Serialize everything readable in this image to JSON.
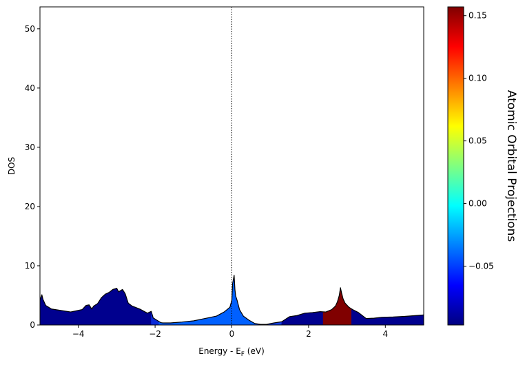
{
  "chart_data": {
    "type": "area",
    "xlabel_main": "Energy - E",
    "xlabel_sub": "F",
    "xlabel_tail": " (eV)",
    "ylabel": "DOS",
    "xlim": [
      -5,
      5
    ],
    "ylim": [
      0,
      53.7
    ],
    "x_ticks": [
      -4,
      -2,
      0,
      2,
      4
    ],
    "x_tick_labels": [
      "−4",
      "−2",
      "0",
      "2",
      "4"
    ],
    "y_ticks": [
      0,
      10,
      20,
      30,
      40,
      50
    ],
    "y_tick_labels": [
      "0",
      "10",
      "20",
      "30",
      "40",
      "50"
    ],
    "fermi_level": 0,
    "dos": {
      "x": [
        -5,
        -4.95,
        -4.92,
        -4.85,
        -4.7,
        -4.5,
        -4.2,
        -3.9,
        -3.8,
        -3.72,
        -3.65,
        -3.6,
        -3.5,
        -3.4,
        -3.3,
        -3.2,
        -3.1,
        -3.0,
        -2.95,
        -2.85,
        -2.78,
        -2.7,
        -2.6,
        -2.4,
        -2.2,
        -2.1,
        -2.05,
        -1.95,
        -1.9,
        -1.85,
        -1.8,
        -1.6,
        -1.3,
        -1.0,
        -0.7,
        -0.4,
        -0.2,
        -0.05,
        0.0,
        0.02,
        0.06,
        0.08,
        0.1,
        0.14,
        0.2,
        0.3,
        0.45,
        0.6,
        0.75,
        0.9,
        1.1,
        1.3,
        1.5,
        1.7,
        1.9,
        2.1,
        2.3,
        2.45,
        2.6,
        2.7,
        2.75,
        2.8,
        2.83,
        2.86,
        2.9,
        2.95,
        3.05,
        3.15,
        3.3,
        3.5,
        3.7,
        3.9,
        4.2,
        4.5,
        4.8,
        5.0
      ],
      "y": [
        4.2,
        5.1,
        4.3,
        3.3,
        2.7,
        2.5,
        2.2,
        2.6,
        3.3,
        3.4,
        2.7,
        3.2,
        3.6,
        4.6,
        5.2,
        5.5,
        6.0,
        6.2,
        5.6,
        6.0,
        5.3,
        3.7,
        3.2,
        2.7,
        2.0,
        2.3,
        1.2,
        0.8,
        0.6,
        0.4,
        0.35,
        0.35,
        0.5,
        0.7,
        1.1,
        1.5,
        2.2,
        3.0,
        4.2,
        7.0,
        8.4,
        6.0,
        4.9,
        4.1,
        2.6,
        1.5,
        0.8,
        0.25,
        0.1,
        0.1,
        0.35,
        0.55,
        1.4,
        1.6,
        2.0,
        2.1,
        2.25,
        2.2,
        2.6,
        3.2,
        3.9,
        5.0,
        6.3,
        5.4,
        4.4,
        3.7,
        3.0,
        2.6,
        2.1,
        1.1,
        1.15,
        1.3,
        1.35,
        1.45,
        1.6,
        1.7
      ]
    },
    "color_bands": [
      {
        "from": -5.0,
        "to": -2.1,
        "color": "#00008e"
      },
      {
        "from": -2.1,
        "to": -1.9,
        "color": "#0a2ad8"
      },
      {
        "from": -1.9,
        "to": 0.65,
        "color": "#0060ff"
      },
      {
        "from": 0.65,
        "to": 1.3,
        "color": "#1240e6"
      },
      {
        "from": 1.3,
        "to": 2.38,
        "color": "#00008e"
      },
      {
        "from": 2.38,
        "to": 3.12,
        "color": "#800000"
      },
      {
        "from": 3.12,
        "to": 5.0,
        "color": "#00008e"
      }
    ],
    "colorbar": {
      "label": "Atomic Orbital Projections",
      "range": [
        -0.097,
        0.157
      ],
      "ticks": [
        -0.05,
        0.0,
        0.05,
        0.1,
        0.15
      ],
      "tick_labels": [
        "−0.05",
        "0.00",
        "0.05",
        "0.10",
        "0.15"
      ],
      "colormap": "jet",
      "stops": [
        "#000080",
        "#0000ff",
        "#0080ff",
        "#00ffff",
        "#80ff80",
        "#ffff00",
        "#ff8000",
        "#ff0000",
        "#800000"
      ]
    }
  }
}
